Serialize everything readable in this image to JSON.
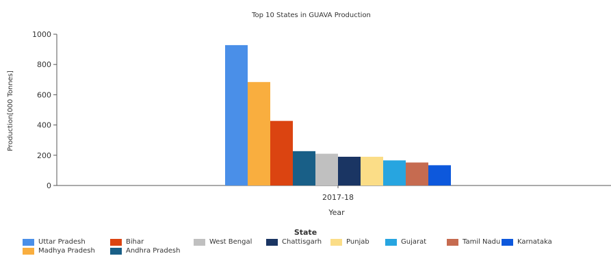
{
  "chart_data": {
    "type": "bar",
    "title": "Top 10 States in GUAVA Production",
    "xlabel": "Year",
    "ylabel": "Production[000 Tonnes]",
    "categories": [
      "2017-18"
    ],
    "ylim": [
      0,
      1000
    ],
    "yticks": [
      "0",
      "200",
      "400",
      "600",
      "800",
      "1000"
    ],
    "legend_title": "State",
    "legend_position": "bottom",
    "series": [
      {
        "name": "Uttar Pradesh",
        "values": [
          928
        ],
        "color": "#4a8fe8"
      },
      {
        "name": "Madhya Pradesh",
        "values": [
          684
        ],
        "color": "#f9ae3f"
      },
      {
        "name": "Bihar",
        "values": [
          427
        ],
        "color": "#db4411"
      },
      {
        "name": "Andhra Pradesh",
        "values": [
          227
        ],
        "color": "#195f87"
      },
      {
        "name": "West Bengal",
        "values": [
          210
        ],
        "color": "#c0c0c0"
      },
      {
        "name": "Chattisgarh",
        "values": [
          190
        ],
        "color": "#1a3563"
      },
      {
        "name": "Punjab",
        "values": [
          190
        ],
        "color": "#fbdd87"
      },
      {
        "name": "Gujarat",
        "values": [
          166
        ],
        "color": "#27a5e0"
      },
      {
        "name": "Tamil Nadu",
        "values": [
          152
        ],
        "color": "#c66b50"
      },
      {
        "name": "Karnataka",
        "values": [
          134
        ],
        "color": "#0d58dc"
      }
    ]
  }
}
